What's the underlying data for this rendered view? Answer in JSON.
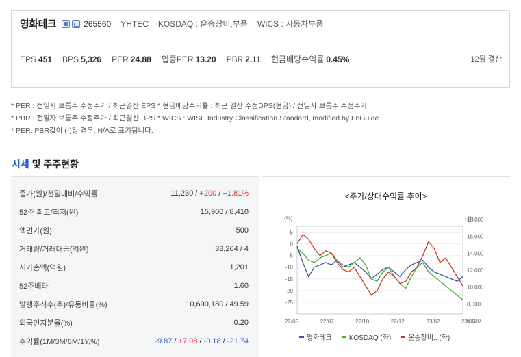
{
  "header": {
    "company_name": "영화테크",
    "code": "265560",
    "ticker": "YHTEC",
    "market": "KOSDAQ : 운송장비,부품",
    "wics": "WICS : 자동차부품"
  },
  "metrics": [
    {
      "label": "EPS",
      "value": "451"
    },
    {
      "label": "BPS",
      "value": "5,326"
    },
    {
      "label": "PER",
      "value": "24.88"
    },
    {
      "label": "업종PER",
      "value": "13.20"
    },
    {
      "label": "PBR",
      "value": "2.11"
    },
    {
      "label": "현금배당수익률",
      "value": "0.45%"
    }
  ],
  "settlement": "12월 결산",
  "notes": [
    "* PER : 전일자 보통주 수정주가 / 최근결산 EPS * 현금배당수익률 : 최근 결산 수정DPS(현금) / 전일자 보통주 수정주가",
    "* PBR : 전일자 보통주 수정주가 / 최근결산 BPS * WICS : WISE Industry Classification Standard, modified by FnGuide",
    "* PER, PBR값이 (-)일 경우, N/A로 표기됩니다."
  ],
  "section": {
    "accent": "시세",
    "rest": " 및 주주현황"
  },
  "stats": {
    "price": {
      "label": "종가(원)/전일대비/수익률",
      "close": "11,230",
      "change": "+200",
      "rate": "+1.81%"
    },
    "high_low": {
      "label": "52주 최고/최저(원)",
      "value": "15,900 / 8,410"
    },
    "face_value": {
      "label": "액면가(원)",
      "value": "500"
    },
    "volume": {
      "label": "거래량/거래대금(억원)",
      "value": "38,264 / 4"
    },
    "market_cap": {
      "label": "시가총액(억원)",
      "value": "1,201"
    },
    "beta": {
      "label": "52주베타",
      "value": "1.60"
    },
    "shares": {
      "label": "발행주식수(주)/유동비율(%)",
      "value": "10,690,180 / 49.59"
    },
    "foreign": {
      "label": "외국인지분율(%)",
      "value": "0.20"
    },
    "returns": {
      "label": "수익률(1M/3M/6M/1Y,%)",
      "r1m": "-9.87",
      "r3m": "+7.98",
      "r6m": "-0.18",
      "r1y": "-21.74"
    }
  },
  "chart_data": {
    "type": "line",
    "title": "<주가/상대수익률 추이>",
    "left_unit": "(%)",
    "right_unit": "(원)",
    "x_labels": [
      "22/05",
      "22/07",
      "22/10",
      "22/12",
      "23/02",
      "23/05"
    ],
    "y_left_ticks": [
      5,
      0,
      -5,
      -10,
      -15,
      -20,
      -25
    ],
    "y_right_ticks": [
      "18,000",
      "16,000",
      "14,000",
      "12,000",
      "10,000",
      "8,000",
      "6,000"
    ],
    "ylim_left": [
      -30,
      7.5
    ],
    "ylim_right": [
      6000,
      18000
    ],
    "series": [
      {
        "name": "영화테크",
        "axis": "left",
        "color": "#3355aa",
        "values": [
          -1,
          -8,
          -14,
          -10,
          -9,
          -8,
          -9,
          -7,
          -10,
          -9,
          -8,
          -10,
          -12,
          -15,
          -13,
          -11,
          -10,
          -12,
          -14,
          -11,
          -9,
          -8,
          -7,
          -10,
          -12,
          -13,
          -14,
          -15,
          -16,
          -14
        ]
      },
      {
        "name": "KOSDAQ (좌)",
        "axis": "left",
        "color": "#44aa33",
        "values": [
          -2,
          -4,
          -7,
          -8,
          -6,
          -5,
          -4,
          -7,
          -9,
          -10,
          -8,
          -6,
          -9,
          -15,
          -16,
          -12,
          -10,
          -14,
          -17,
          -19,
          -14,
          -10,
          -8,
          -12,
          -14,
          -16,
          -18,
          -20,
          -22,
          -24
        ]
      },
      {
        "name": "운송장비.. (좌)",
        "axis": "left",
        "color": "#cc3322",
        "values": [
          0,
          4,
          2,
          -2,
          -5,
          -3,
          -4,
          -8,
          -11,
          -12,
          -10,
          -14,
          -18,
          -22,
          -20,
          -15,
          -12,
          -14,
          -17,
          -16,
          -12,
          -10,
          -5,
          1,
          -2,
          -8,
          -6,
          -10,
          -14,
          -18
        ]
      }
    ]
  }
}
